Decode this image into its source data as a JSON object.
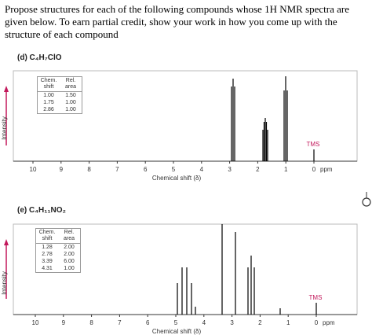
{
  "question": "Propose structures for each of the following compounds whose 1H NMR spectra are given below. To earn partial credit, show your work in how you come up with the structure of each compound",
  "spectra": [
    {
      "label": "(d) C₄H₇ClO",
      "table": {
        "header": [
          "Chem. shift",
          "Rel. area"
        ],
        "rows": [
          [
            "1.00",
            "1.50"
          ],
          [
            "1.75",
            "1.00"
          ],
          [
            "2.86",
            "1.00"
          ]
        ]
      },
      "y_label": "Intensity",
      "x_label": "Chemical shift (δ)",
      "x_ticks": [
        10,
        9,
        8,
        7,
        6,
        5,
        4,
        3,
        2,
        1,
        0
      ],
      "x_unit": "ppm",
      "reference": "TMS"
    },
    {
      "label": "(e) C₄H₁₁NO₂",
      "table": {
        "header": [
          "Chem. shift",
          "Rel. area"
        ],
        "rows": [
          [
            "1.28",
            "2.00"
          ],
          [
            "2.78",
            "2.00"
          ],
          [
            "3.39",
            "6.00"
          ],
          [
            "4.31",
            "1.00"
          ]
        ]
      },
      "y_label": "Intensity",
      "x_label": "Chemical shift (δ)",
      "x_ticks": [
        10,
        9,
        8,
        7,
        6,
        5,
        4,
        3,
        2,
        1,
        0
      ],
      "x_unit": "ppm",
      "reference": "TMS"
    }
  ]
}
